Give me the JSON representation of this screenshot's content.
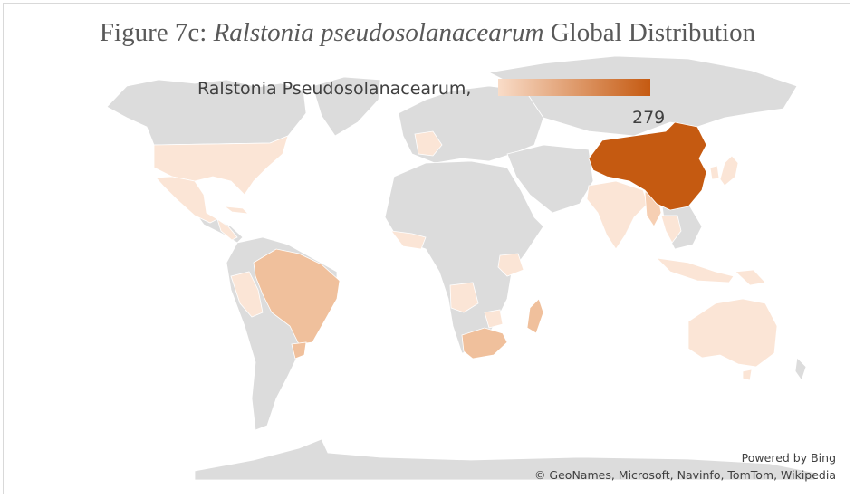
{
  "title": {
    "prefix": "Figure 7c: ",
    "species": "Ralstonia pseudosolanacearum",
    "suffix": " Global Distribution"
  },
  "legend": {
    "label": "Ralstonia Pseudosolanacearum,",
    "max_value": "279",
    "gradient_start": "#f9dcc8",
    "gradient_end": "#c55a11"
  },
  "credits": {
    "powered_by": "Powered by Bing",
    "sources": "© GeoNames, Microsoft, Navinfo, TomTom, Wikipedia"
  },
  "colors": {
    "land": "#dcdcdc",
    "low": "#fbe5d6",
    "mid_low": "#f6cfb3",
    "mid": "#f0c09c",
    "high": "#c55a11"
  },
  "highlighted_countries": [
    {
      "name": "United States",
      "level": "low"
    },
    {
      "name": "Mexico",
      "level": "low"
    },
    {
      "name": "Central America",
      "level": "low"
    },
    {
      "name": "Cuba",
      "level": "low"
    },
    {
      "name": "Peru",
      "level": "low"
    },
    {
      "name": "Brazil",
      "level": "mid"
    },
    {
      "name": "Uruguay",
      "level": "mid"
    },
    {
      "name": "France",
      "level": "low"
    },
    {
      "name": "West Africa",
      "level": "low"
    },
    {
      "name": "Kenya",
      "level": "low"
    },
    {
      "name": "Angola",
      "level": "low"
    },
    {
      "name": "Zimbabwe",
      "level": "low"
    },
    {
      "name": "South Africa",
      "level": "mid"
    },
    {
      "name": "Madagascar",
      "level": "mid"
    },
    {
      "name": "India",
      "level": "low"
    },
    {
      "name": "Myanmar",
      "level": "mid_low"
    },
    {
      "name": "China",
      "level": "high",
      "value": 279
    },
    {
      "name": "South Korea",
      "level": "low"
    },
    {
      "name": "Japan",
      "level": "low"
    },
    {
      "name": "Southeast Asia",
      "level": "low"
    },
    {
      "name": "Indonesia",
      "level": "low"
    },
    {
      "name": "Papua New Guinea",
      "level": "low"
    },
    {
      "name": "Australia",
      "level": "low"
    }
  ]
}
